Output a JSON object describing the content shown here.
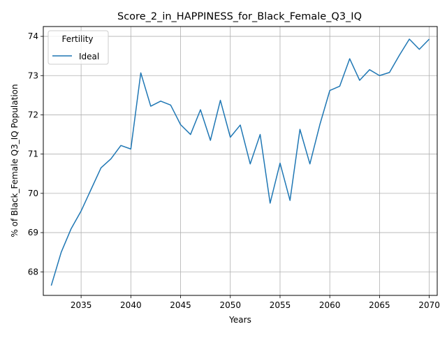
{
  "chart_data": {
    "type": "line",
    "title": "Score_2_in_HAPPINESS_for_Black_Female_Q3_IQ",
    "xlabel": "Years",
    "ylabel": "% of Black_Female Q3_IQ Population",
    "xlim": [
      2031.2,
      2070.8
    ],
    "ylim": [
      67.4,
      74.25
    ],
    "xticks": [
      2035,
      2040,
      2045,
      2050,
      2055,
      2060,
      2065,
      2070
    ],
    "yticks": [
      68,
      69,
      70,
      71,
      72,
      73,
      74
    ],
    "grid": true,
    "legend": {
      "title": "Fertility",
      "placement": "upper-left"
    },
    "series": [
      {
        "name": "Ideal",
        "color": "#1f77b4",
        "x": [
          2032,
          2033,
          2034,
          2035,
          2036,
          2037,
          2038,
          2039,
          2040,
          2041,
          2042,
          2043,
          2044,
          2045,
          2046,
          2047,
          2048,
          2049,
          2050,
          2051,
          2052,
          2053,
          2054,
          2055,
          2056,
          2057,
          2058,
          2059,
          2060,
          2061,
          2062,
          2063,
          2064,
          2065,
          2066,
          2067,
          2068,
          2069,
          2070
        ],
        "y": [
          67.65,
          68.5,
          69.1,
          69.55,
          70.1,
          70.65,
          70.88,
          71.22,
          71.13,
          73.07,
          72.22,
          72.35,
          72.25,
          71.75,
          71.5,
          72.13,
          71.35,
          72.37,
          71.43,
          71.74,
          70.75,
          71.5,
          69.75,
          70.77,
          69.82,
          71.63,
          70.75,
          71.75,
          72.62,
          72.73,
          73.43,
          72.88,
          73.15,
          73.0,
          73.08,
          73.52,
          73.93,
          73.67,
          73.93
        ]
      }
    ]
  }
}
